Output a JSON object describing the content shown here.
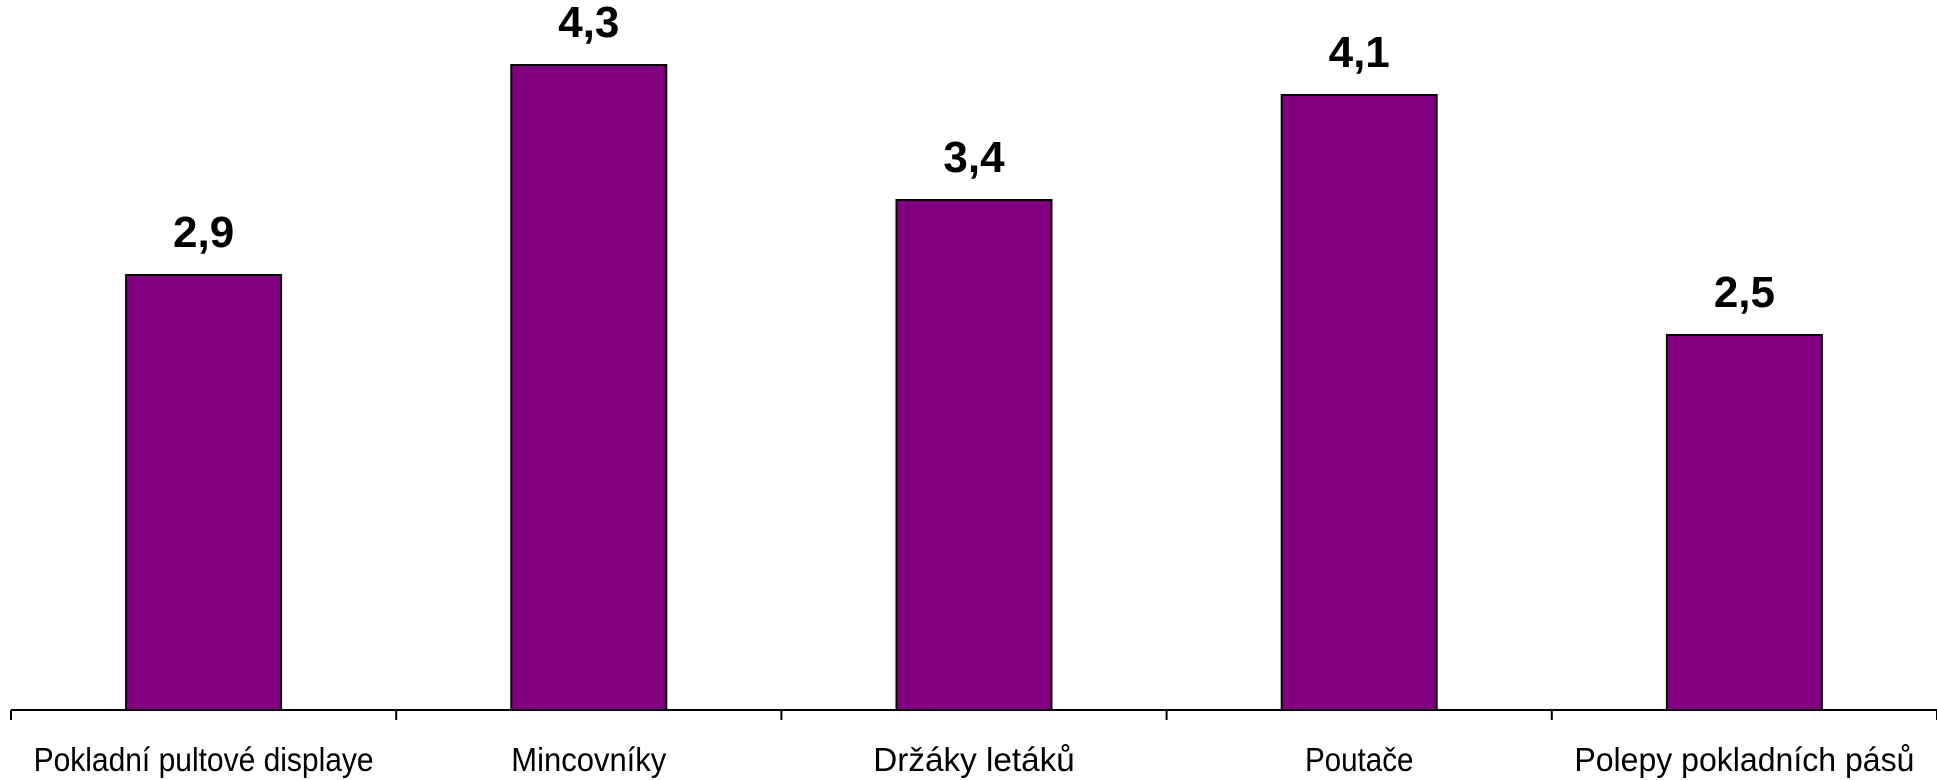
{
  "chart_data": {
    "type": "bar",
    "categories": [
      "Pokladní pultové displaye",
      "Mincovníky",
      "Držáky letáků",
      "Poutače",
      "Polepy pokladních pásů"
    ],
    "values": [
      2.9,
      4.3,
      3.4,
      4.1,
      2.5
    ],
    "value_labels": [
      "2,9",
      "4,3",
      "3,4",
      "4,1",
      "2,5"
    ],
    "title": "",
    "xlabel": "",
    "ylabel": "",
    "ylim": [
      0,
      4.6
    ],
    "grid": false,
    "legend": "none",
    "bar_color": "#800080"
  }
}
